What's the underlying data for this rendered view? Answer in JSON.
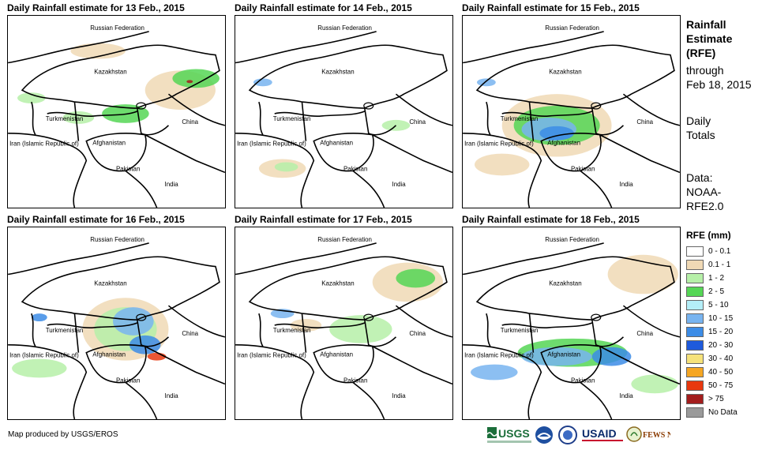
{
  "panels": [
    {
      "title": "Daily Rainfall estimate for 13 Feb., 2015"
    },
    {
      "title": "Daily Rainfall estimate for 14 Feb., 2015"
    },
    {
      "title": "Daily Rainfall estimate for 15 Feb., 2015"
    },
    {
      "title": "Daily Rainfall estimate for 16 Feb., 2015"
    },
    {
      "title": "Daily Rainfall estimate for 17 Feb., 2015"
    },
    {
      "title": "Daily Rainfall estimate for 18 Feb., 2015"
    }
  ],
  "map_labels": {
    "russia": "Russian Federation",
    "kazakhstan": "Kazakhstan",
    "turkmenistan": "Turkmenistan",
    "iran": "Iran  (Islamic Republic of)",
    "afghanistan": "Afghanistan",
    "pakistan": "Pakistan",
    "china": "China",
    "india": "India"
  },
  "sidebar": {
    "title_line1": "Rainfall",
    "title_line2": "Estimate",
    "title_line3": "(RFE)",
    "through_line1": "through",
    "through_line2": "Feb 18, 2015",
    "daily_line1": "Daily",
    "daily_line2": "Totals",
    "data_line1": "Data:",
    "data_line2": "NOAA-",
    "data_line3": "RFE2.0"
  },
  "legend": {
    "title": "RFE (mm)",
    "items": [
      {
        "label": "0 - 0.1",
        "color": "#ffffff"
      },
      {
        "label": "0.1 - 1",
        "color": "#f0d9b5"
      },
      {
        "label": "1 - 2",
        "color": "#b6f0a8"
      },
      {
        "label": "2 - 5",
        "color": "#55d655"
      },
      {
        "label": "5 - 10",
        "color": "#b4eef8"
      },
      {
        "label": "10 - 15",
        "color": "#78b4f0"
      },
      {
        "label": "15 - 20",
        "color": "#3c8ce6"
      },
      {
        "label": "20 - 30",
        "color": "#1e5adc"
      },
      {
        "label": "30 - 40",
        "color": "#f6e27a"
      },
      {
        "label": "40 - 50",
        "color": "#f5a623"
      },
      {
        "label": "50 - 75",
        "color": "#e8380f"
      },
      {
        "label": "> 75",
        "color": "#a31d1d"
      },
      {
        "label": "No Data",
        "color": "#9a9a9a"
      }
    ]
  },
  "credit": "Map produced by USGS/EROS",
  "logos": {
    "usgs": "USGS",
    "usaid": "USAID",
    "fewsnet": "FEWS NET"
  }
}
